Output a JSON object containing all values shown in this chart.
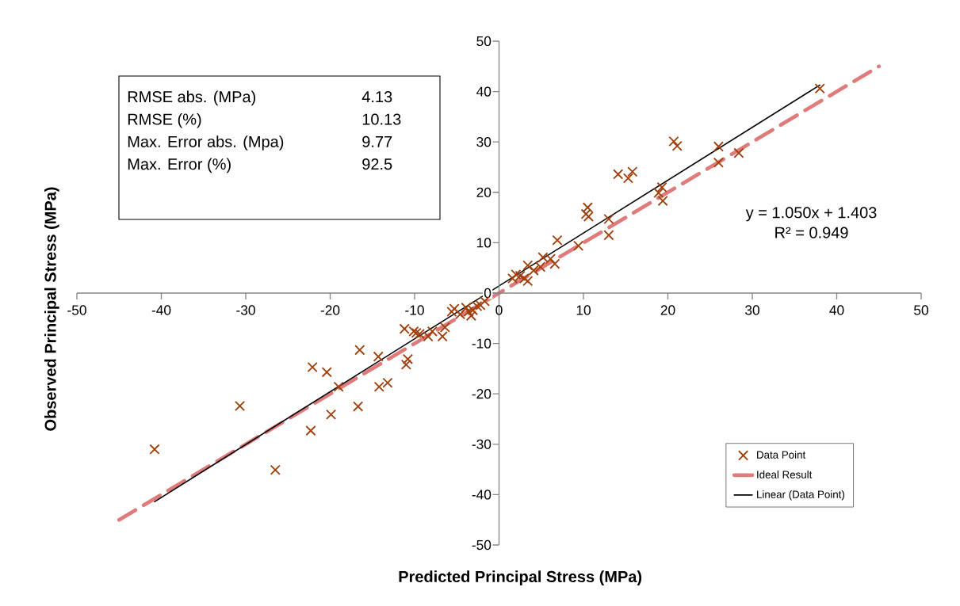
{
  "chart_data": {
    "type": "scatter",
    "xlabel": "Predicted Principal Stress (MPa)",
    "ylabel": "Observed Principal Stress (MPa)",
    "xlim": [
      -50,
      50
    ],
    "ylim": [
      -50,
      50
    ],
    "xticks": [
      -50,
      -40,
      -30,
      -20,
      -10,
      0,
      10,
      20,
      30,
      40,
      50
    ],
    "yticks": [
      -50,
      -40,
      -30,
      -20,
      -10,
      0,
      10,
      20,
      30,
      40,
      50
    ],
    "legend": "bottom right",
    "annotations": [
      "RMSE abs.  (MPa)",
      "4.13",
      "RMSE (%)",
      "10.13",
      "Max. Error abs. (Mpa)",
      "9.77",
      "Max. Error (%)",
      "92.5",
      "y = 1.050x + 1.403",
      "R² = 0.949"
    ],
    "series": [
      {
        "name": "Data Point",
        "color": "#a0410d",
        "marker": "cross",
        "x": [
          38.0,
          20.7,
          21.1,
          26.0,
          26.0,
          28.4,
          14.1,
          15.8,
          15.3,
          19.3,
          18.9,
          19.4,
          10.5,
          10.3,
          10.6,
          13.0,
          13.0,
          9.4,
          6.9,
          5.2,
          6.1,
          6.6,
          4.9,
          3.4,
          4.1,
          2.5,
          2.0,
          3.0,
          3.4,
          1.6,
          -1.7,
          -2.2,
          -2.6,
          -3.1,
          -3.6,
          -3.3,
          -3.9,
          -5.3,
          -5.6,
          -4.6,
          -6.4,
          -6.7,
          -7.9,
          -9.8,
          -11.2,
          -10.1,
          -9.4,
          -8.4,
          -16.5,
          -14.3,
          -10.8,
          -11.0,
          -22.1,
          -20.4,
          -19.0,
          -14.2,
          -13.2,
          -16.7,
          -19.9,
          -30.7,
          -22.3,
          -40.8,
          -26.5
        ],
        "values": [
          40.6,
          30.1,
          29.2,
          29.1,
          25.9,
          27.8,
          23.6,
          24.1,
          22.8,
          21.0,
          19.9,
          18.3,
          17.0,
          15.7,
          15.2,
          14.7,
          11.5,
          9.4,
          10.5,
          7.1,
          6.8,
          5.8,
          5.2,
          5.5,
          4.5,
          3.4,
          3.7,
          2.9,
          2.4,
          2.9,
          -1.6,
          -2.4,
          -2.6,
          -3.4,
          -3.7,
          -4.5,
          -2.9,
          -3.1,
          -3.7,
          -4.2,
          -6.8,
          -8.6,
          -7.6,
          -7.9,
          -7.1,
          -7.6,
          -8.1,
          -8.6,
          -11.3,
          -12.6,
          -13.1,
          -14.2,
          -14.7,
          -15.7,
          -18.6,
          -18.6,
          -17.8,
          -22.5,
          -24.1,
          -22.4,
          -27.3,
          -31.0,
          -35.1
        ]
      },
      {
        "name": "Ideal Result",
        "type": "line",
        "color": "#e07b7b",
        "line_style": "dashed",
        "x": [
          -45,
          45
        ],
        "values": [
          -45,
          45
        ]
      },
      {
        "name": "Linear (Data Point)",
        "type": "line",
        "color": "#000000",
        "line_style": "solid",
        "x": [
          -40.8,
          38.0
        ],
        "values": [
          -41.4,
          41.3
        ]
      }
    ]
  }
}
